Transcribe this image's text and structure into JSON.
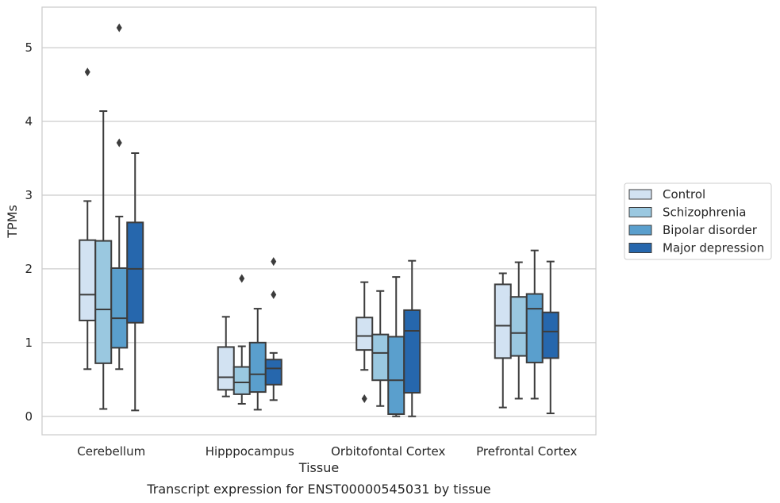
{
  "chart_data": {
    "type": "box",
    "title": "",
    "caption": "Transcript expression for ENST00000545031 by tissue",
    "xlabel": "Tissue",
    "ylabel": "TPMs",
    "ylim": [
      -0.25,
      5.55
    ],
    "yticks": [
      "0",
      "1",
      "2",
      "3",
      "4",
      "5"
    ],
    "grid": "horizontal",
    "legend": {
      "placement": "right",
      "entries": [
        "Control",
        "Schizophrenia",
        "Bipolar disorder",
        "Major depression"
      ]
    },
    "categories": [
      "Cerebellum",
      "Hipppocampus",
      "Orbitofontal Cortex",
      "Prefrontal Cortex"
    ],
    "colors": [
      "#d2e2f2",
      "#9ac8e0",
      "#5a9fcd",
      "#2667ad"
    ],
    "edge_color": "#3c3c3c",
    "boxes": [
      [
        {
          "whislo": 0.64,
          "q1": 1.3,
          "med": 1.65,
          "q3": 2.39,
          "whishi": 2.92,
          "fliers": [
            4.67
          ]
        },
        {
          "whislo": 0.1,
          "q1": 0.72,
          "med": 1.45,
          "q3": 2.38,
          "whishi": 4.14,
          "fliers": []
        },
        {
          "whislo": 0.64,
          "q1": 0.93,
          "med": 1.33,
          "q3": 2.01,
          "whishi": 2.71,
          "fliers": [
            3.71,
            5.27
          ]
        },
        {
          "whislo": 0.08,
          "q1": 1.27,
          "med": 2.0,
          "q3": 2.63,
          "whishi": 3.57,
          "fliers": []
        }
      ],
      [
        {
          "whislo": 0.27,
          "q1": 0.36,
          "med": 0.53,
          "q3": 0.94,
          "whishi": 1.35,
          "fliers": []
        },
        {
          "whislo": 0.17,
          "q1": 0.3,
          "med": 0.46,
          "q3": 0.67,
          "whishi": 0.95,
          "fliers": [
            1.87
          ]
        },
        {
          "whislo": 0.09,
          "q1": 0.33,
          "med": 0.57,
          "q3": 1.0,
          "whishi": 1.46,
          "fliers": []
        },
        {
          "whislo": 0.22,
          "q1": 0.43,
          "med": 0.65,
          "q3": 0.77,
          "whishi": 0.86,
          "fliers": [
            1.65,
            2.1
          ]
        }
      ],
      [
        {
          "whislo": 0.63,
          "q1": 0.9,
          "med": 1.09,
          "q3": 1.34,
          "whishi": 1.82,
          "fliers": [
            0.24
          ]
        },
        {
          "whislo": 0.14,
          "q1": 0.49,
          "med": 0.86,
          "q3": 1.11,
          "whishi": 1.7,
          "fliers": []
        },
        {
          "whislo": 0.0,
          "q1": 0.03,
          "med": 0.49,
          "q3": 1.08,
          "whishi": 1.89,
          "fliers": []
        },
        {
          "whislo": 0.0,
          "q1": 0.32,
          "med": 1.16,
          "q3": 1.44,
          "whishi": 2.11,
          "fliers": []
        }
      ],
      [
        {
          "whislo": 0.12,
          "q1": 0.79,
          "med": 1.23,
          "q3": 1.79,
          "whishi": 1.94,
          "fliers": []
        },
        {
          "whislo": 0.24,
          "q1": 0.82,
          "med": 1.13,
          "q3": 1.62,
          "whishi": 2.09,
          "fliers": []
        },
        {
          "whislo": 0.24,
          "q1": 0.73,
          "med": 1.46,
          "q3": 1.66,
          "whishi": 2.25,
          "fliers": []
        },
        {
          "whislo": 0.04,
          "q1": 0.79,
          "med": 1.15,
          "q3": 1.41,
          "whishi": 2.1,
          "fliers": []
        }
      ]
    ]
  }
}
